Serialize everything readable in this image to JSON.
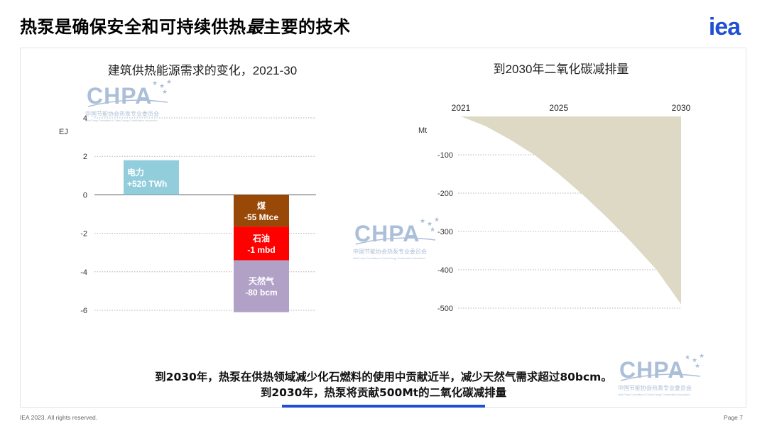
{
  "slide": {
    "title_pre": "热泵是确保安全和可持续供热",
    "title_emph": "最",
    "title_post": "主要的技术",
    "footer_left": "IEA 2023. All rights reserved.",
    "footer_right": "Page 7",
    "conclusion_line1": "到2030年，热泵在供热领域减少化石燃料的使用中贡献近半，减少天然气需求超过80bcm。",
    "conclusion_line2": "到2030年，热泵将贡献500Mt的二氧化碳减排量",
    "accent_color": "#1f4fd6",
    "logo_text": "iea",
    "logo_color": "#1f4fd6"
  },
  "watermark": {
    "brand": "CHPA",
    "subtitle": "中国节能协会热泵专业委员会",
    "subtitle_en": "Heat Pump Committee of China Energy Conservation Association",
    "color": "#8aa4c8"
  },
  "chart_data": [
    {
      "type": "bar",
      "title": "建筑供热能源需求的变化，2021-30",
      "ylabel": "EJ",
      "ylim": [
        -6,
        4
      ],
      "yticks": [
        4,
        2,
        0,
        -2,
        -4,
        -6
      ],
      "grid": true,
      "bars": [
        {
          "label_line1": "电力",
          "label_line2": "+520 TWh",
          "start": 0,
          "end": 1.8,
          "color": "#92cddc"
        },
        {
          "label_line1": "煤",
          "label_line2": "-55 Mtce",
          "start": 0,
          "end": -1.65,
          "color": "#984807"
        },
        {
          "label_line1": "石油",
          "label_line2": "-1 mbd",
          "start": -1.65,
          "end": -3.4,
          "color": "#ff0000"
        },
        {
          "label_line1": "天然气",
          "label_line2": "-80 bcm",
          "start": -3.4,
          "end": -6.1,
          "color": "#b2a1c7"
        }
      ]
    },
    {
      "type": "area",
      "title": "到2030年二氧化碳减排量",
      "ylabel": "Mt",
      "xlim": [
        2021,
        2030
      ],
      "xticks": [
        2021,
        2025,
        2030
      ],
      "ylim": [
        -500,
        0
      ],
      "yticks": [
        -100,
        -200,
        -300,
        -400,
        -500
      ],
      "grid": true,
      "color": "#ddd9c4",
      "x": [
        2021,
        2022,
        2023,
        2024,
        2025,
        2026,
        2027,
        2028,
        2029,
        2030
      ],
      "values": [
        0,
        -25,
        -60,
        -100,
        -150,
        -205,
        -265,
        -330,
        -400,
        -490
      ]
    }
  ]
}
